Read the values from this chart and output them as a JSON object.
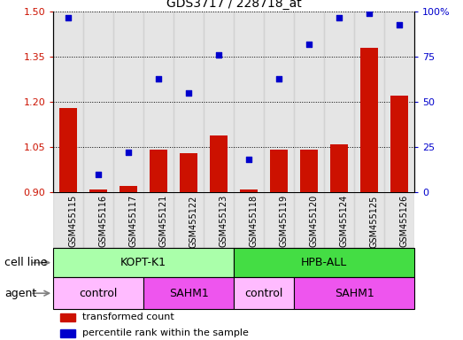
{
  "title": "GDS3717 / 228718_at",
  "samples": [
    "GSM455115",
    "GSM455116",
    "GSM455117",
    "GSM455121",
    "GSM455122",
    "GSM455123",
    "GSM455118",
    "GSM455119",
    "GSM455120",
    "GSM455124",
    "GSM455125",
    "GSM455126"
  ],
  "bar_values": [
    1.18,
    0.91,
    0.92,
    1.04,
    1.03,
    1.09,
    0.91,
    1.04,
    1.04,
    1.06,
    1.38,
    1.22
  ],
  "dot_values": [
    97,
    10,
    22,
    63,
    55,
    76,
    18,
    63,
    82,
    97,
    99,
    93
  ],
  "ylim_left": [
    0.9,
    1.5
  ],
  "ylim_right": [
    0,
    100
  ],
  "yticks_left": [
    0.9,
    1.05,
    1.2,
    1.35,
    1.5
  ],
  "yticks_right": [
    0,
    25,
    50,
    75,
    100
  ],
  "bar_color": "#cc1100",
  "dot_color": "#0000cc",
  "cell_line_groups": [
    {
      "label": "KOPT-K1",
      "start": 0,
      "end": 5,
      "color": "#aaffaa"
    },
    {
      "label": "HPB-ALL",
      "start": 6,
      "end": 11,
      "color": "#44dd44"
    }
  ],
  "agent_groups": [
    {
      "label": "control",
      "start": 0,
      "end": 2,
      "color": "#ffbbff"
    },
    {
      "label": "SAHM1",
      "start": 3,
      "end": 5,
      "color": "#ee55ee"
    },
    {
      "label": "control",
      "start": 6,
      "end": 7,
      "color": "#ffbbff"
    },
    {
      "label": "SAHM1",
      "start": 8,
      "end": 11,
      "color": "#ee55ee"
    }
  ],
  "legend_items": [
    {
      "label": "transformed count",
      "color": "#cc1100"
    },
    {
      "label": "percentile rank within the sample",
      "color": "#0000cc"
    }
  ],
  "cell_line_label": "cell line",
  "agent_label": "agent",
  "bar_bottom": 0.9,
  "tick_label_fontsize": 7,
  "title_fontsize": 10,
  "gray_bg": "#cccccc",
  "n_samples": 12
}
